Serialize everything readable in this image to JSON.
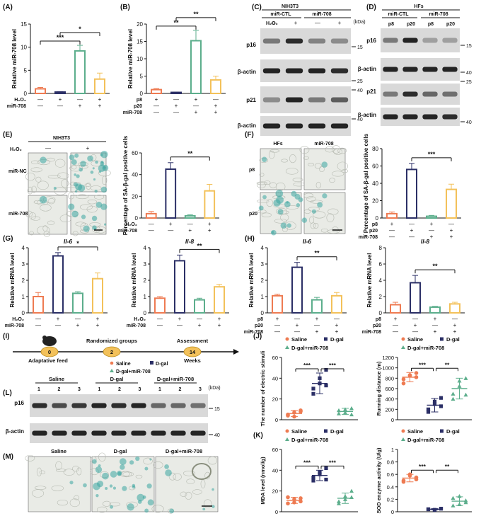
{
  "colors": {
    "ctl": "#ee7b52",
    "treat": "#2b2f66",
    "mir": "#5cae8c",
    "both": "#f3c15a",
    "blot_bg": "#d9d9d9",
    "band": "#1a1a1a"
  },
  "panels": {
    "A": "(A)",
    "B": "(B)",
    "C": "(C)",
    "D": "(D)",
    "E": "(E)",
    "F": "(F)",
    "G": "(G)",
    "H": "(H)",
    "I": "(I)",
    "J": "(J)",
    "K": "(K)",
    "L": "(L)",
    "M": "(M)"
  },
  "common": {
    "plus": "+",
    "minus": "—",
    "h2o2": "H₂O₂",
    "mir708": "miR-708",
    "p8": "p8",
    "p20": "p20",
    "kda": "(kDa)",
    "mir_ctl": "miR-CTL",
    "mir_nc": "miR-NC",
    "actin": "β-actin",
    "p16": "p16",
    "p21": "p21",
    "sig1": "***",
    "sig2": "**",
    "sig3": "*",
    "saline": "Saline",
    "dgal": "D-gal",
    "dgalmir": "D-gal+miR-708",
    "dgalmir2": "D-gal+miR-708",
    "adaptative": "Adaptative feed",
    "randomized": "Randomized groups",
    "assessment": "Assessment",
    "weeks": "Weeks",
    "mw15": "15",
    "mw25": "25",
    "mw40": "40"
  },
  "chart_data": [
    {
      "panel": "A",
      "type": "bar",
      "ylabel": "Relative miR-708 level",
      "ylim": [
        0,
        15
      ],
      "yticks": [
        0,
        5,
        10,
        15
      ],
      "conditions": {
        "H2O2": [
          "—",
          "+",
          "—",
          "+"
        ],
        "miR-708": [
          "—",
          "—",
          "+",
          "+"
        ]
      },
      "values": [
        1.0,
        0.3,
        9.2,
        3.1
      ],
      "errors": [
        0.3,
        0.1,
        1.2,
        1.3
      ],
      "significance": [
        "***",
        "*"
      ]
    },
    {
      "panel": "B",
      "type": "bar",
      "ylabel": "Relative miR-708 level",
      "ylim": [
        0,
        20
      ],
      "yticks": [
        0,
        5,
        10,
        15,
        20
      ],
      "conditions": {
        "p8": [
          "+",
          "—",
          "+",
          "—"
        ],
        "p20": [
          "—",
          "+",
          "—",
          "+"
        ],
        "miR-708": [
          "—",
          "—",
          "+",
          "+"
        ]
      },
      "values": [
        1.1,
        0.3,
        15.2,
        3.9
      ],
      "errors": [
        0.3,
        0.1,
        3.0,
        1.1
      ],
      "significance": [
        "**",
        "**"
      ]
    },
    {
      "panel": "E",
      "type": "bar",
      "ylabel": "Percentage of SA-β-gal positive cells",
      "ylim": [
        0,
        60
      ],
      "yticks": [
        0,
        20,
        40,
        60
      ],
      "conditions": {
        "H2O2": [
          "—",
          "+",
          "—",
          "+"
        ],
        "miR-708": [
          "—",
          "—",
          "+",
          "+"
        ]
      },
      "values": [
        4,
        45,
        2,
        25
      ],
      "errors": [
        2,
        6,
        1,
        6
      ],
      "significance": [
        "**"
      ]
    },
    {
      "panel": "F",
      "type": "bar",
      "ylabel": "Percentage of SA-β-gal positive cells",
      "ylim": [
        0,
        80
      ],
      "yticks": [
        0,
        20,
        40,
        60,
        80
      ],
      "conditions": {
        "p8": [
          "+",
          "—",
          "+",
          "—"
        ],
        "p20": [
          "—",
          "+",
          "—",
          "+"
        ],
        "miR-708": [
          "—",
          "—",
          "+",
          "+"
        ]
      },
      "values": [
        5,
        56,
        2,
        33
      ],
      "errors": [
        2,
        7,
        1,
        6
      ],
      "significance": [
        "***"
      ]
    },
    {
      "panel": "G1",
      "type": "bar",
      "title": "Il-6",
      "ylabel": "Relative mRNA level",
      "ylim": [
        0,
        4
      ],
      "yticks": [
        0,
        1,
        2,
        3,
        4
      ],
      "conditions": {
        "H2O2": [
          "—",
          "+",
          "—",
          "+"
        ],
        "miR-708": [
          "—",
          "—",
          "+",
          "+"
        ]
      },
      "values": [
        1.0,
        3.5,
        1.2,
        2.1
      ],
      "errors": [
        0.25,
        0.2,
        0.1,
        0.35
      ],
      "significance": [
        "*"
      ]
    },
    {
      "panel": "G2",
      "type": "bar",
      "title": "Il-8",
      "ylabel": "Relative mRNA level",
      "ylim": [
        0,
        4
      ],
      "yticks": [
        0,
        1,
        2,
        3,
        4
      ],
      "conditions": {
        "H2O2": [
          "—",
          "+",
          "—",
          "+"
        ],
        "miR-708": [
          "—",
          "—",
          "+",
          "+"
        ]
      },
      "values": [
        0.9,
        3.2,
        0.8,
        1.6
      ],
      "errors": [
        0.1,
        0.35,
        0.1,
        0.15
      ],
      "significance": [
        "**"
      ]
    },
    {
      "panel": "H1",
      "type": "bar",
      "title": "Il-6",
      "ylabel": "Relative mRNA level",
      "ylim": [
        0,
        4
      ],
      "yticks": [
        0,
        1,
        2,
        3,
        4
      ],
      "conditions": {
        "p8": [
          "+",
          "—",
          "+",
          "—"
        ],
        "p20": [
          "—",
          "+",
          "—",
          "+"
        ],
        "miR-708": [
          "—",
          "—",
          "+",
          "+"
        ]
      },
      "values": [
        1.05,
        2.8,
        0.8,
        1.05
      ],
      "errors": [
        0.1,
        0.3,
        0.15,
        0.2
      ],
      "significance": [
        "**"
      ]
    },
    {
      "panel": "H2",
      "type": "bar",
      "title": "Il-8",
      "ylabel": "Relative mRNA level",
      "ylim": [
        0,
        8
      ],
      "yticks": [
        0,
        2,
        4,
        6,
        8
      ],
      "conditions": {
        "p8": [
          "+",
          "—",
          "+",
          "—"
        ],
        "p20": [
          "—",
          "+",
          "—",
          "+"
        ],
        "miR-708": [
          "—",
          "—",
          "+",
          "+"
        ]
      },
      "values": [
        1.0,
        3.7,
        0.7,
        1.1
      ],
      "errors": [
        0.3,
        0.9,
        0.1,
        0.2
      ],
      "significance": [
        "**"
      ]
    },
    {
      "panel": "J1",
      "type": "scatter",
      "ylabel": "The number of electric stimuli",
      "ylim": [
        0,
        60
      ],
      "yticks": [
        0,
        20,
        40,
        60
      ],
      "groups": [
        "Saline",
        "D-gal",
        "D-gal+miR-708"
      ],
      "means": [
        6,
        35,
        8
      ],
      "errors": [
        3,
        10,
        3
      ],
      "points": [
        [
          5,
          3,
          8,
          4,
          7,
          9
        ],
        [
          25,
          40,
          48,
          30,
          35,
          33
        ],
        [
          6,
          10,
          5,
          9,
          7,
          11
        ]
      ],
      "significance": [
        "***",
        "***"
      ]
    },
    {
      "panel": "J2",
      "type": "scatter",
      "ylabel": "Running distance (m)",
      "ylim": [
        0,
        1200
      ],
      "yticks": [
        0,
        200,
        400,
        600,
        800,
        1000,
        1200
      ],
      "groups": [
        "Saline",
        "D-gal",
        "D-gal+miR-708"
      ],
      "means": [
        820,
        280,
        600
      ],
      "errors": [
        90,
        130,
        200
      ],
      "points": [
        [
          700,
          850,
          900,
          780,
          860,
          820
        ],
        [
          150,
          300,
          420,
          200,
          350,
          260
        ],
        [
          400,
          750,
          800,
          500,
          650,
          480
        ]
      ],
      "significance": [
        "***",
        "**"
      ]
    },
    {
      "panel": "K1",
      "type": "scatter",
      "ylabel": "MDA level (nmol/g)",
      "ylim": [
        0,
        60
      ],
      "yticks": [
        0,
        20,
        40,
        60
      ],
      "groups": [
        "Saline",
        "D-gal",
        "D-gal+miR-708"
      ],
      "means": [
        11,
        35,
        13
      ],
      "errors": [
        3,
        5,
        5
      ],
      "points": [
        [
          8,
          12,
          10,
          14,
          9,
          13
        ],
        [
          30,
          38,
          42,
          33,
          36,
          31
        ],
        [
          8,
          15,
          20,
          10,
          12,
          14
        ]
      ],
      "significance": [
        "***",
        "***"
      ]
    },
    {
      "panel": "K2",
      "type": "scatter",
      "ylabel": "SOD enzyme activity (U/g)",
      "ylim": [
        0,
        1.0
      ],
      "yticks": [
        0,
        0.2,
        0.4,
        0.6,
        0.8,
        1.0
      ],
      "groups": [
        "Saline",
        "D-gal",
        "D-gal+miR-708"
      ],
      "means": [
        0.54,
        0.04,
        0.17
      ],
      "errors": [
        0.06,
        0.01,
        0.07
      ],
      "points": [
        [
          0.5,
          0.6,
          0.55,
          0.48,
          0.58,
          0.52
        ],
        [
          0.04,
          0.03,
          0.05,
          0.04,
          0.03,
          0.05
        ],
        [
          0.1,
          0.25,
          0.15,
          0.22,
          0.12,
          0.18
        ]
      ],
      "significance": [
        "***",
        "**"
      ]
    }
  ],
  "text": {
    "nih3t3": "NIH3T3",
    "hfs": "HFs",
    "E_nc": "miR-NC",
    "E_708": "miR-708",
    "il6": "Il-6",
    "il8": "Il-8",
    "timeline": [
      "0",
      "2",
      "14"
    ],
    "lanes": [
      "1",
      "2",
      "3",
      "1",
      "2",
      "3",
      "1",
      "2",
      "3"
    ]
  }
}
